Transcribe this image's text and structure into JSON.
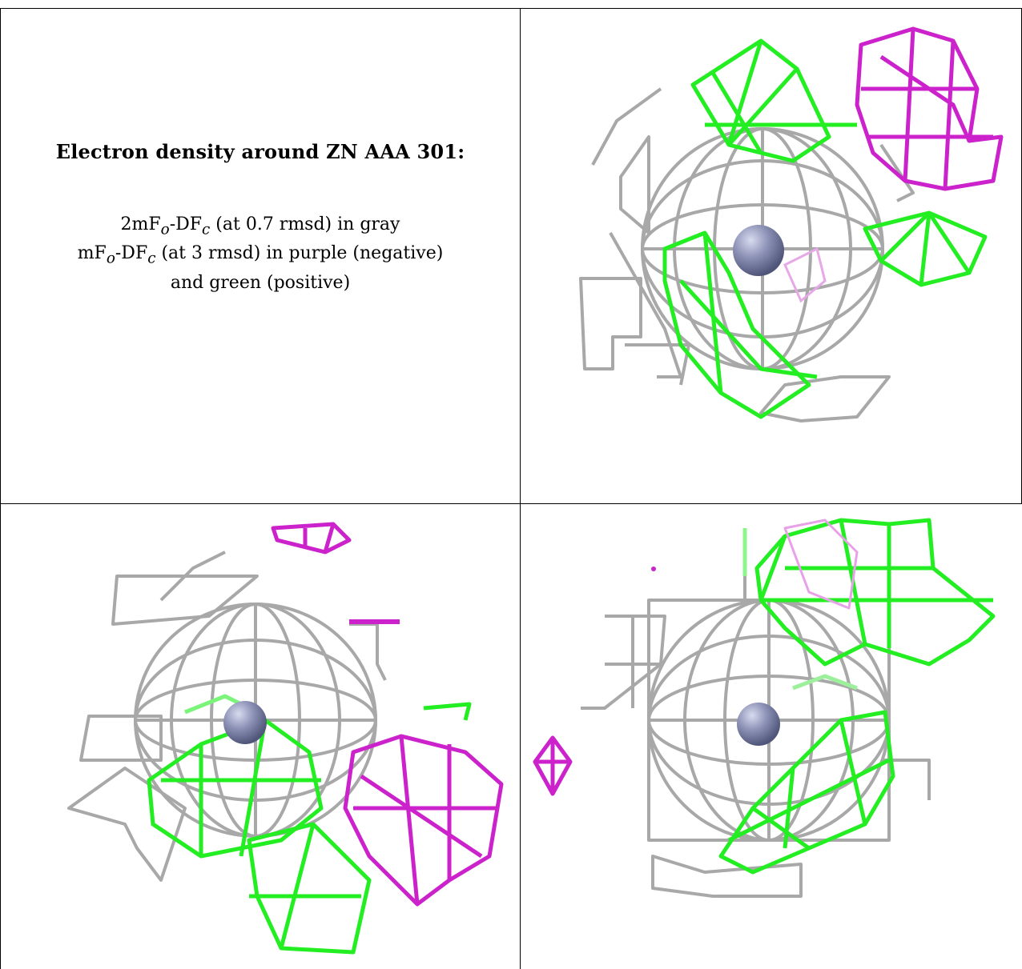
{
  "caption": {
    "title": "Electron density around ZN AAA 301:",
    "line1_main": "2mF",
    "line1_sub1": "o",
    "line1_mid": "-DF",
    "line1_sub2": "c",
    "line1_tail": " (at 0.7 rmsd) in gray",
    "line2_main": "mF",
    "line2_sub1": "o",
    "line2_mid": "-DF",
    "line2_sub2": "c",
    "line2_tail": " (at 3 rmsd) in purple (negative)",
    "line3": "and green (positive)"
  },
  "colors": {
    "gray_mesh": "#9a9a9a",
    "negative_mesh": "#cc22cc",
    "positive_mesh": "#22ee22",
    "zinc_atom": "#8b90b5"
  },
  "panels": [
    {
      "name": "view-top-right",
      "atom": "ZN"
    },
    {
      "name": "view-bottom-left",
      "atom": "ZN"
    },
    {
      "name": "view-bottom-right",
      "atom": "ZN"
    }
  ]
}
